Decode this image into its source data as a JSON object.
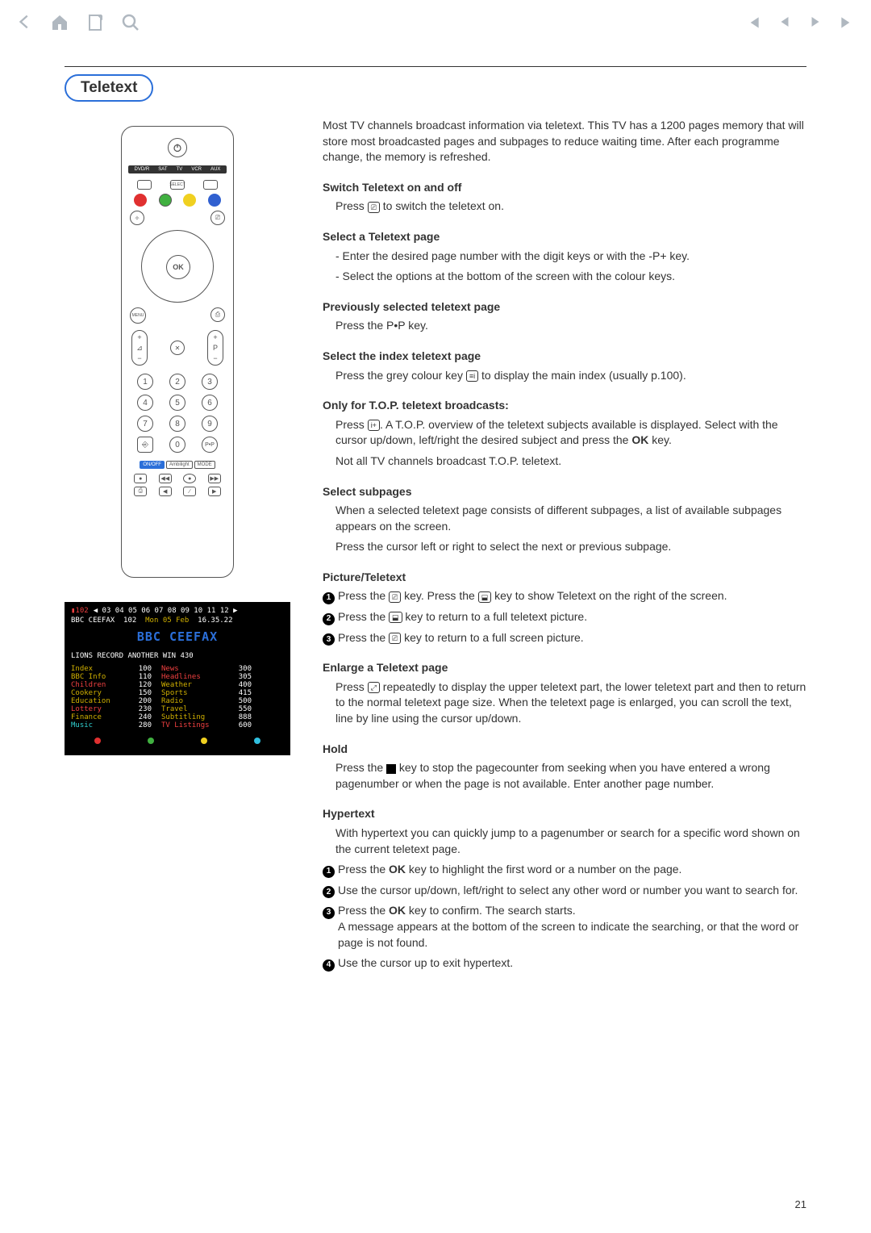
{
  "toolbar": {
    "back_icon": "back",
    "home_icon": "home",
    "print_icon": "print",
    "search_icon": "search",
    "first_icon": "first",
    "prev_icon": "prev",
    "next_icon": "next",
    "last_icon": "last"
  },
  "badge": "Teletext",
  "intro": "Most TV channels broadcast information via teletext. This TV has a 1200 pages memory that will store most broadcasted pages and subpages to reduce waiting time.  After each programme change, the memory is refreshed.",
  "sections": {
    "switch": {
      "h": "Switch Teletext on and off",
      "p": "Press       to switch the teletext on."
    },
    "select_page": {
      "h": "Select a Teletext page",
      "l1": "- Enter the desired page number with the digit keys or with the -P+ key.",
      "l2": "- Select the options at the bottom of the screen with the colour keys."
    },
    "prev_page": {
      "h": "Previously selected teletext page",
      "p": "Press the  P•P key."
    },
    "index": {
      "h": "Select the index teletext page",
      "p": "Press the grey colour key        to display the main index (usually p.100)."
    },
    "top": {
      "h": "Only for T.O.P. teletext broadcasts:",
      "p1": "Press       .  A T.O.P. overview of the teletext subjects available is displayed. Select with the cursor up/down, left/right the desired subject and press the ",
      "ok": "OK",
      "p1b": " key.",
      "p2": "Not all TV channels broadcast T.O.P. teletext."
    },
    "subpages": {
      "h": "Select subpages",
      "p1": "When a selected teletext page consists of different subpages, a list of available subpages appears on the screen.",
      "p2": "Press the cursor left or right to select the next or previous subpage."
    },
    "pic_ttx": {
      "h": "Picture/Teletext",
      "s1a": "Press the ",
      "s1b": " key. Press the ",
      "s1c": " key to show Teletext on the right of the screen.",
      "s2a": "Press the ",
      "s2b": " key to return to a full teletext picture.",
      "s3a": "Press the ",
      "s3b": " key to return to a full screen picture."
    },
    "enlarge": {
      "h": "Enlarge a Teletext page",
      "p": "Press        repeatedly to display the upper teletext part, the lower teletext part and then to return to the normal teletext page size. When the teletext page is enlarged, you can scroll the text, line by line using the cursor up/down."
    },
    "hold": {
      "h": "Hold",
      "p": "Press the       key to stop the pagecounter from seeking when you have entered a wrong pagenumber or when the page is not available. Enter another page number."
    },
    "hypertext": {
      "h": "Hypertext",
      "intro": "With hypertext you can quickly jump to a pagenumber or search for a specific word shown on the current teletext page.",
      "s1": "Press the OK key to highlight the first word or a number on the page.",
      "s2": "Use the cursor up/down, left/right to select any other word or number you want to search for.",
      "s3a": "Press the OK key to confirm. The search starts.",
      "s3b": "A message appears at the bottom of the screen to indicate the searching, or that the word or page is not found.",
      "s4": "Use the cursor up to exit hypertext."
    }
  },
  "remote": {
    "sources": [
      "DVD/R",
      "SAT",
      "TV",
      "VCR",
      "AUX"
    ],
    "select": "SELECT",
    "ok": "OK",
    "menu": "MENU",
    "numbers": [
      "1",
      "2",
      "3",
      "4",
      "5",
      "6",
      "7",
      "8",
      "9",
      "",
      "0",
      ""
    ],
    "bottom_left": "⎆",
    "bottom_right": "P•P",
    "pills": [
      "ON/OFF",
      "Ambilight",
      "MODE"
    ],
    "p_label": "P",
    "vol_icon": "⊿"
  },
  "ttx": {
    "page_now": "102",
    "page_list": "◀ 03  04  05  06  07  08  09  10  11  12  ▶",
    "source": "BBC CEEFAX",
    "pg": "102",
    "date": "Mon 05 Feb",
    "time": "16.35.22",
    "logo": "BBC CEEFAX",
    "headline": "LIONS RECORD ANOTHER WIN        430",
    "index_left": [
      {
        "label": "Index",
        "n": "100",
        "c": "yel"
      },
      {
        "label": "BBC Info",
        "n": "110",
        "c": "yel"
      },
      {
        "label": "Children",
        "n": "120",
        "c": "red"
      },
      {
        "label": "Cookery",
        "n": "150",
        "c": "yel"
      },
      {
        "label": "Education",
        "n": "200",
        "c": "yel"
      },
      {
        "label": "Lottery",
        "n": "230",
        "c": "red"
      },
      {
        "label": "Finance",
        "n": "240",
        "c": "yel"
      },
      {
        "label": "Music",
        "n": "280",
        "c": "cyan"
      }
    ],
    "index_right": [
      {
        "label": "News",
        "n": "300",
        "c": "red"
      },
      {
        "label": "Headlines",
        "n": "305",
        "c": "red"
      },
      {
        "label": "Weather",
        "n": "400",
        "c": "yel"
      },
      {
        "label": "Sports",
        "n": "415",
        "c": "yel"
      },
      {
        "label": "Radio",
        "n": "500",
        "c": "yel"
      },
      {
        "label": "Travel",
        "n": "550",
        "c": "yel"
      },
      {
        "label": "Subtitling",
        "n": "888",
        "c": "yel"
      },
      {
        "label": "TV Listings",
        "n": "600",
        "c": "red"
      }
    ],
    "dot_colors": [
      "#e03030",
      "#40b040",
      "#f0d020",
      "#30c0e0"
    ]
  },
  "page_number": "21"
}
